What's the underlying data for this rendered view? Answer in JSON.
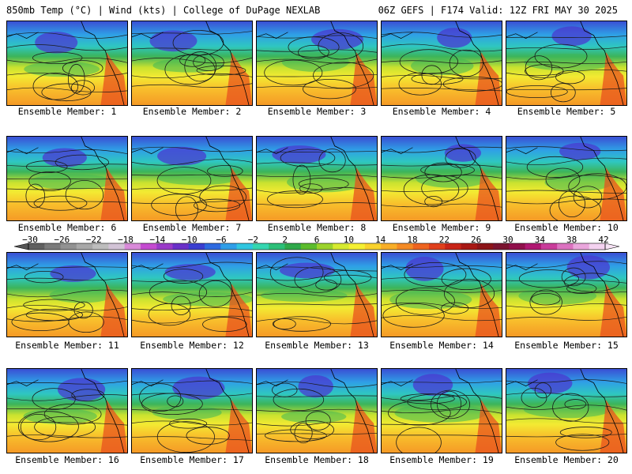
{
  "header": {
    "title_left": "850mb Temp (°C) | Wind (kts) | College of DuPage NEXLAB",
    "title_right": "06Z GEFS | F174 Valid: 12Z FRI MAY 30 2025"
  },
  "panels": [
    {
      "label": "Ensemble Member: 1"
    },
    {
      "label": "Ensemble Member: 2"
    },
    {
      "label": "Ensemble Member: 3"
    },
    {
      "label": "Ensemble Member: 4"
    },
    {
      "label": "Ensemble Member: 5"
    },
    {
      "label": "Ensemble Member: 6"
    },
    {
      "label": "Ensemble Member: 7"
    },
    {
      "label": "Ensemble Member: 8"
    },
    {
      "label": "Ensemble Member: 9"
    },
    {
      "label": "Ensemble Member: 10"
    },
    {
      "label": "Ensemble Member: 11"
    },
    {
      "label": "Ensemble Member: 12"
    },
    {
      "label": "Ensemble Member: 13"
    },
    {
      "label": "Ensemble Member: 14"
    },
    {
      "label": "Ensemble Member: 15"
    },
    {
      "label": "Ensemble Member: 16"
    },
    {
      "label": "Ensemble Member: 17"
    },
    {
      "label": "Ensemble Member: 18"
    },
    {
      "label": "Ensemble Member: 19"
    },
    {
      "label": "Ensemble Member: 20"
    }
  ],
  "colorbar": {
    "ticks": [
      "−30",
      "−26",
      "−22",
      "−18",
      "−14",
      "−10",
      "−6",
      "−2",
      "2",
      "6",
      "10",
      "14",
      "18",
      "22",
      "26",
      "30",
      "34",
      "38",
      "42"
    ],
    "colors": [
      "#606060",
      "#7a7a7a",
      "#929292",
      "#a8a8a8",
      "#bdbdbd",
      "#d2c3d6",
      "#d98ad9",
      "#c44bd0",
      "#9a3ac8",
      "#6a30c8",
      "#3b3fd0",
      "#2e6ae0",
      "#2f9ee8",
      "#30c6e0",
      "#35d6b0",
      "#2cbf78",
      "#2fa84a",
      "#5cbc2d",
      "#9bd32c",
      "#d6ea30",
      "#f5f032",
      "#f9d22c",
      "#f8ae28",
      "#f48a24",
      "#ee6420",
      "#e0401c",
      "#c82418",
      "#a81814",
      "#8c1418",
      "#7a1430",
      "#90104c",
      "#b01872",
      "#c93c9a",
      "#dc72c0",
      "#eaa6dc",
      "#f4d2f0"
    ]
  }
}
